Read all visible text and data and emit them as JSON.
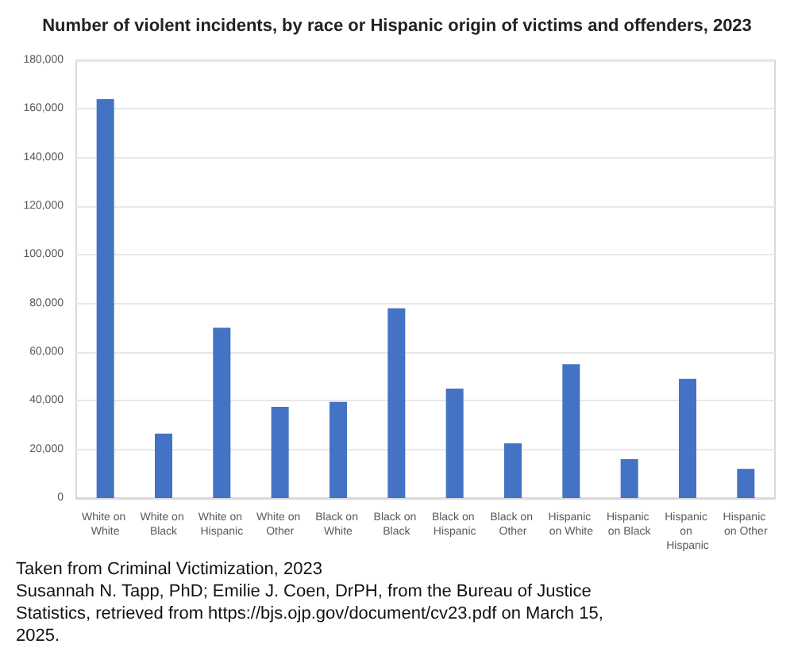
{
  "chart_data": {
    "type": "bar",
    "title": "Number of violent incidents, by race or Hispanic origin of victims and offenders, 2023",
    "categories": [
      "White on White",
      "White on Black",
      "White on Hispanic",
      "White on Other",
      "Black on White",
      "Black on Black",
      "Black on Hispanic",
      "Black on Other",
      "Hispanic on White",
      "Hispanic on Black",
      "Hispanic on Hispanic",
      "Hispanic on Other"
    ],
    "values": [
      164000,
      26500,
      70000,
      37500,
      39500,
      78000,
      45000,
      22500,
      55000,
      16000,
      49000,
      12000
    ],
    "color": "#4472c4",
    "ylim": [
      0,
      180000
    ],
    "yticks": [
      0,
      {
        "value": 20000,
        "label": "20,000"
      },
      {
        "value": 40000,
        "label": "40,000"
      },
      {
        "value": 60000,
        "label": "60,000"
      },
      {
        "value": 80000,
        "label": "80,000"
      },
      {
        "value": 100000,
        "label": "100,000"
      },
      {
        "value": 120000,
        "label": "120,000"
      },
      {
        "value": 140000,
        "label": "140,000"
      },
      {
        "value": 160000,
        "label": "160,000"
      },
      {
        "value": 180000,
        "label": "180,000"
      }
    ],
    "grid": "y",
    "annotations": [
      "Taken from Criminal Victimization, 2023",
      "Susannah N. Tapp, PhD; Emilie J. Coen, DrPH, from the Bureau of Justice Statistics, retrieved from https://bjs.ojp.gov/document/cv23.pdf on March 15, 2025."
    ]
  }
}
